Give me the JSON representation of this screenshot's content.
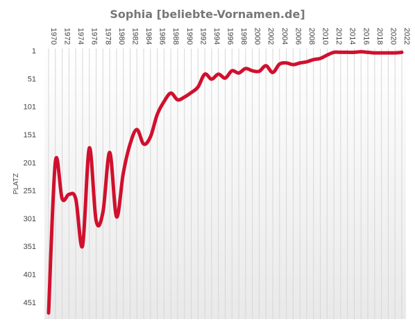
{
  "chart_data": {
    "type": "line",
    "title": "Sophia [beliebte-Vornamen.de]",
    "ylabel": "PLATZ",
    "xlabel": "",
    "y_inverted": true,
    "ylim": [
      1,
      471
    ],
    "xlim": [
      1970,
      2022
    ],
    "y_ticks": [
      1,
      51,
      101,
      151,
      201,
      251,
      301,
      351,
      401,
      451
    ],
    "x_ticks": [
      1970,
      1972,
      1974,
      1976,
      1978,
      1980,
      1982,
      1984,
      1986,
      1988,
      1990,
      1992,
      1994,
      1996,
      1998,
      2000,
      2002,
      2004,
      2006,
      2008,
      2010,
      2012,
      2014,
      2016,
      2018,
      2020,
      2022
    ],
    "grid": "vertical",
    "legend": "none",
    "line_color": "#d0102e",
    "series": [
      {
        "x": [
          1970,
          1971,
          1972,
          1973,
          1974,
          1975,
          1976,
          1977,
          1978,
          1979,
          1980,
          1981,
          1982,
          1983,
          1984,
          1985,
          1986,
          1987,
          1988,
          1989,
          1990,
          1991,
          1992,
          1993,
          1994,
          1995,
          1996,
          1997,
          1998,
          1999,
          2000,
          2001,
          2002,
          2003,
          2004,
          2005,
          2006,
          2007,
          2008,
          2009,
          2010,
          2011,
          2012,
          2013,
          2014,
          2015,
          2016,
          2017,
          2018,
          2019,
          2020,
          2021,
          2022
        ],
        "y": [
          470,
          200,
          266,
          258,
          266,
          350,
          175,
          305,
          290,
          183,
          298,
          220,
          168,
          142,
          168,
          155,
          115,
          92,
          77,
          89,
          84,
          76,
          66,
          43,
          52,
          43,
          50,
          37,
          41,
          33,
          37,
          38,
          28,
          40,
          25,
          23,
          26,
          23,
          21,
          17,
          15,
          9,
          4,
          4,
          4,
          4,
          3,
          4,
          5,
          5,
          5,
          5,
          4
        ]
      }
    ]
  }
}
